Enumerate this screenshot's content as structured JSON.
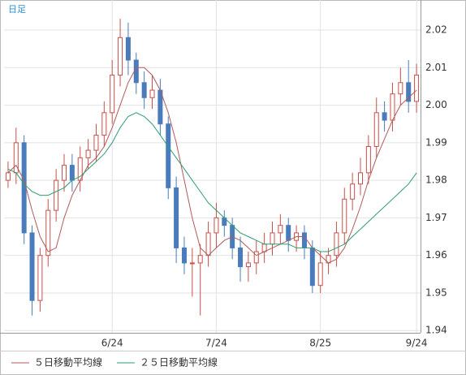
{
  "chart_data": {
    "type": "candlestick",
    "title": "日足",
    "categories": [
      null,
      null,
      null,
      null,
      null,
      null,
      null,
      null,
      null,
      null,
      null,
      null,
      null,
      null,
      null,
      null,
      null,
      null,
      null,
      null,
      null,
      null,
      null,
      null,
      null,
      null,
      null,
      null,
      null,
      null,
      null,
      null,
      null,
      null,
      null,
      null,
      null,
      null,
      null,
      null,
      null,
      null,
      null,
      null,
      null,
      null,
      null,
      null,
      null,
      null,
      null,
      null
    ],
    "open": [
      1.98,
      1.982,
      1.99,
      1.966,
      1.948,
      1.96,
      1.972,
      1.98,
      1.984,
      1.98,
      1.986,
      1.988,
      1.992,
      1.998,
      2.008,
      2.018,
      2.012,
      2.006,
      2.002,
      2.004,
      1.995,
      1.978,
      1.962,
      1.958,
      1.958,
      1.96,
      1.966,
      1.97,
      1.968,
      1.962,
      1.957,
      1.958,
      1.961,
      1.963,
      1.966,
      1.968,
      1.964,
      1.966,
      1.962,
      1.952,
      1.958,
      1.96,
      1.966,
      1.975,
      1.979,
      1.982,
      1.989,
      1.998,
      1.996,
      2.003,
      2.006,
      2.001
    ],
    "high": [
      1.985,
      1.994,
      1.992,
      1.968,
      1.962,
      1.975,
      1.983,
      1.987,
      1.987,
      1.989,
      1.991,
      1.995,
      2.001,
      2.012,
      2.023,
      2.022,
      2.014,
      2.009,
      2.008,
      2.007,
      1.997,
      1.981,
      1.965,
      1.962,
      1.963,
      1.969,
      1.974,
      1.972,
      1.97,
      1.965,
      1.961,
      1.964,
      1.966,
      1.969,
      1.971,
      1.97,
      1.968,
      1.968,
      1.964,
      1.961,
      1.962,
      1.969,
      1.978,
      1.982,
      1.986,
      1.992,
      2.002,
      2.001,
      2.006,
      2.01,
      2.012,
      2.011
    ],
    "low": [
      1.978,
      1.979,
      1.963,
      1.944,
      1.945,
      1.957,
      1.969,
      1.977,
      1.977,
      1.977,
      1.983,
      1.985,
      1.989,
      1.995,
      2.005,
      2.008,
      2.003,
      1.999,
      1.999,
      1.992,
      1.975,
      1.958,
      1.955,
      1.949,
      1.944,
      1.957,
      1.962,
      1.965,
      1.959,
      1.953,
      1.953,
      1.955,
      1.958,
      1.96,
      1.963,
      1.961,
      1.961,
      1.959,
      1.95,
      1.95,
      1.955,
      1.957,
      1.963,
      1.972,
      1.976,
      1.979,
      1.986,
      1.993,
      1.993,
      2.0,
      1.998,
      1.998
    ],
    "close": [
      1.982,
      1.99,
      1.966,
      1.948,
      1.96,
      1.972,
      1.98,
      1.984,
      1.98,
      1.986,
      1.988,
      1.992,
      1.998,
      2.008,
      2.018,
      2.012,
      2.006,
      2.002,
      2.004,
      1.995,
      1.978,
      1.962,
      1.958,
      1.958,
      1.96,
      1.966,
      1.97,
      1.968,
      1.962,
      1.957,
      1.958,
      1.961,
      1.963,
      1.966,
      1.968,
      1.964,
      1.966,
      1.962,
      1.952,
      1.958,
      1.96,
      1.966,
      1.975,
      1.979,
      1.982,
      1.989,
      1.998,
      1.996,
      2.003,
      2.006,
      2.001,
      2.008
    ],
    "up_color": "#c8504b",
    "down_color": "#4a7bbb",
    "series": [
      {
        "name": "５日移動平均線",
        "color": "#b25a5a",
        "values": [
          1.982,
          1.984,
          1.98,
          1.972,
          1.965,
          1.961,
          1.962,
          1.97,
          1.976,
          1.98,
          1.984,
          1.986,
          1.989,
          1.994,
          2.0,
          2.006,
          2.01,
          2.01,
          2.008,
          2.004,
          1.998,
          1.99,
          1.98,
          1.97,
          1.962,
          1.96,
          1.962,
          1.964,
          1.965,
          1.964,
          1.962,
          1.96,
          1.961,
          1.962,
          1.963,
          1.964,
          1.965,
          1.965,
          1.962,
          1.96,
          1.958,
          1.959,
          1.962,
          1.967,
          1.973,
          1.98,
          1.986,
          1.991,
          1.996,
          2.0,
          2.002,
          2.004
        ]
      },
      {
        "name": "２５日移動平均線",
        "color": "#2e9e72",
        "values": [
          1.983,
          1.982,
          1.979,
          1.977,
          1.976,
          1.976,
          1.977,
          1.978,
          1.98,
          1.981,
          1.983,
          1.985,
          1.987,
          1.99,
          1.994,
          1.997,
          1.998,
          1.997,
          1.995,
          1.992,
          1.989,
          1.986,
          1.983,
          1.98,
          1.977,
          1.974,
          1.972,
          1.97,
          1.968,
          1.966,
          1.965,
          1.964,
          1.963,
          1.963,
          1.963,
          1.963,
          1.962,
          1.962,
          1.962,
          1.961,
          1.961,
          1.962,
          1.963,
          1.965,
          1.967,
          1.969,
          1.971,
          1.973,
          1.975,
          1.977,
          1.979,
          1.982
        ]
      }
    ],
    "ylim": [
      1.9394,
      2.028
    ],
    "yticks": [
      1.94,
      1.95,
      1.96,
      1.97,
      1.98,
      1.99,
      {
        "value": 2,
        "label": "2.00"
      },
      2.01,
      2.02
    ],
    "xticks": [
      {
        "value": 13,
        "label": "6/24"
      },
      {
        "value": 26,
        "label": "7/24"
      },
      {
        "value": 39,
        "label": "8/25"
      },
      {
        "value": 51,
        "label": "9/24"
      }
    ],
    "grid": true
  }
}
